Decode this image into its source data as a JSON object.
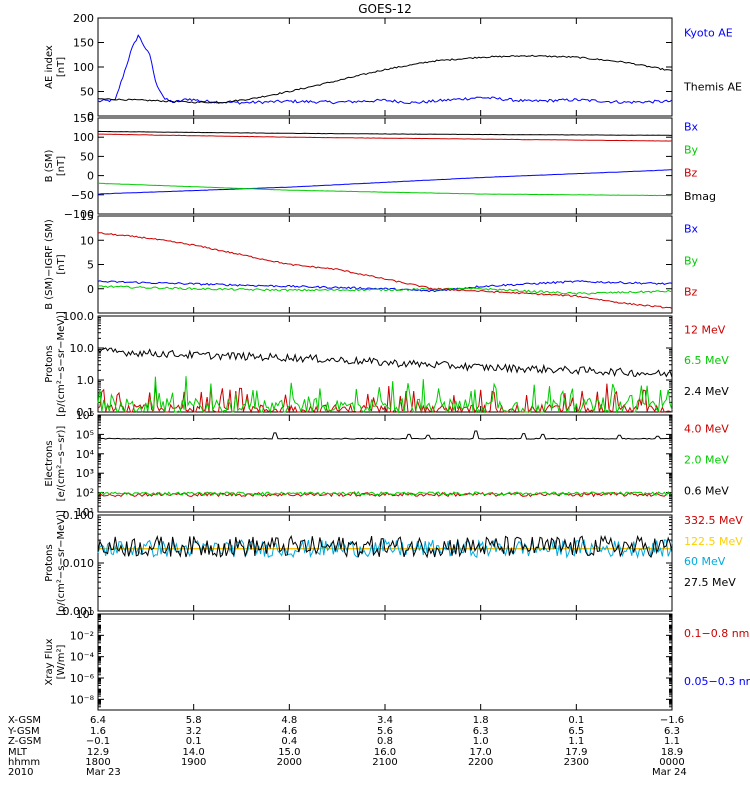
{
  "title": "GOES-12",
  "colors": {
    "black": "#000000",
    "blue": "#0000ff",
    "red": "#cc0000",
    "green": "#00cc00",
    "cyan": "#00aadd",
    "yellow": "#ffd000"
  },
  "chart_data": [
    {
      "id": "ae",
      "type": "line",
      "ylabel": "AE index",
      "yunit": "[nT]",
      "yscale": "linear",
      "ylim": [
        0,
        200
      ],
      "yticks": [
        "0",
        "50",
        "100",
        "150",
        "200"
      ],
      "ytick_values": [
        0,
        50,
        100,
        150,
        200
      ],
      "x_hours": [
        0,
        6
      ],
      "legend_placement": "right",
      "series": [
        {
          "name": "Kyoto AE",
          "color": "#0000ff",
          "legend_color": "#0000ff",
          "legend_pos": 0.15,
          "x": [
            0.0,
            0.18,
            0.35,
            0.42,
            0.55,
            0.6,
            0.7,
            0.8,
            0.95,
            1.1,
            1.5,
            2.0,
            2.5,
            3.0,
            3.3,
            3.5,
            4.0,
            4.5,
            5.0,
            5.5,
            6.0
          ],
          "y": [
            30,
            32,
            135,
            165,
            120,
            70,
            34,
            28,
            35,
            30,
            27,
            30,
            28,
            32,
            27,
            30,
            38,
            30,
            33,
            28,
            30
          ],
          "noise": 3
        },
        {
          "name": "Themis AE",
          "color": "#000000",
          "legend_color": "#000000",
          "legend_pos": 0.7,
          "x": [
            0.0,
            0.5,
            1.0,
            1.3,
            1.6,
            2.0,
            2.5,
            3.0,
            3.3,
            3.5,
            4.0,
            4.5,
            5.0,
            5.5,
            6.0
          ],
          "y": [
            35,
            32,
            28,
            28,
            35,
            50,
            72,
            95,
            105,
            112,
            120,
            123,
            120,
            110,
            92
          ],
          "noise": 1.5
        }
      ]
    },
    {
      "id": "bsm",
      "type": "line",
      "ylabel": "B (SM)",
      "yunit": "[nT]",
      "yscale": "linear",
      "ylim": [
        -100,
        150
      ],
      "yticks": [
        "−100",
        "−50",
        "0",
        "50",
        "100",
        "150"
      ],
      "ytick_values": [
        -100,
        -50,
        0,
        50,
        100,
        150
      ],
      "x_hours": [
        0,
        6
      ],
      "legend_placement": "right",
      "series": [
        {
          "name": "Bx",
          "color": "#0000ff",
          "legend_color": "#0000ff",
          "legend_pos": 0.09,
          "x": [
            0,
            2,
            4,
            6
          ],
          "y": [
            -48,
            -30,
            -5,
            15
          ],
          "noise": 0.3
        },
        {
          "name": "By",
          "color": "#00cc00",
          "legend_color": "#00cc00",
          "legend_pos": 0.33,
          "x": [
            0,
            2,
            4,
            6
          ],
          "y": [
            -20,
            -38,
            -48,
            -52
          ],
          "noise": 0.3
        },
        {
          "name": "Bz",
          "color": "#cc0000",
          "legend_color": "#cc0000",
          "legend_pos": 0.57,
          "x": [
            0,
            2,
            4,
            6
          ],
          "y": [
            108,
            100,
            95,
            90
          ],
          "noise": 0.3
        },
        {
          "name": "Bmag",
          "color": "#000000",
          "legend_color": "#000000",
          "legend_pos": 0.81,
          "x": [
            0,
            2,
            4,
            6
          ],
          "y": [
            115,
            110,
            107,
            105
          ],
          "noise": 0.3
        }
      ]
    },
    {
      "id": "bdiff",
      "type": "line",
      "ylabel": "B (SM)−IGRF (SM)",
      "yunit": "[nT]",
      "yscale": "linear",
      "ylim": [
        -5,
        15
      ],
      "yticks": [
        "0",
        "5",
        "10",
        "15"
      ],
      "ytick_values": [
        0,
        5,
        10,
        15
      ],
      "x_hours": [
        0,
        6
      ],
      "legend_placement": "right",
      "series": [
        {
          "name": "Bx",
          "color": "#0000ff",
          "legend_color": "#0000ff",
          "legend_pos": 0.13,
          "x": [
            0,
            1,
            2,
            3,
            3.5,
            4,
            5,
            6
          ],
          "y": [
            1.5,
            1.0,
            0.5,
            0,
            -0.5,
            0.5,
            1.5,
            1.0
          ],
          "noise": 0.2
        },
        {
          "name": "By",
          "color": "#00cc00",
          "legend_color": "#00cc00",
          "legend_pos": 0.46,
          "x": [
            0,
            1,
            2,
            3,
            4,
            5,
            6
          ],
          "y": [
            0.5,
            0.0,
            -0.3,
            -0.2,
            0.0,
            -1.0,
            -0.5
          ],
          "noise": 0.2
        },
        {
          "name": "Bz",
          "color": "#cc0000",
          "legend_color": "#cc0000",
          "legend_pos": 0.78,
          "x": [
            0,
            0.5,
            1,
            1.5,
            2,
            2.5,
            3,
            3.5,
            4,
            4.5,
            5,
            5.5,
            6
          ],
          "y": [
            11.5,
            10.5,
            9,
            7,
            5,
            4,
            2,
            0,
            -0.5,
            -1.0,
            -1.5,
            -3,
            -4
          ],
          "noise": 0.15
        }
      ]
    },
    {
      "id": "protons_low",
      "type": "line",
      "ylabel": "Protons",
      "yunit": "[p/(cm²−s−sr−MeV)]",
      "yscale": "log",
      "ylim": [
        0.1,
        100
      ],
      "yticks": [
        "0.1",
        "1.0",
        "10.0",
        "100.0"
      ],
      "ytick_values": [
        0.1,
        1,
        10,
        100
      ],
      "x_hours": [
        0,
        6
      ],
      "legend_placement": "right",
      "series": [
        {
          "name": "12 MeV",
          "color": "#cc0000",
          "legend_color": "#cc0000",
          "legend_pos": 0.14,
          "x": [
            0,
            6
          ],
          "y": [
            0.12,
            0.12
          ],
          "noise": 0.15,
          "spiky": true
        },
        {
          "name": "6.5 MeV",
          "color": "#00cc00",
          "legend_color": "#00cc00",
          "legend_pos": 0.46,
          "x": [
            0,
            6
          ],
          "y": [
            0.15,
            0.15
          ],
          "noise": 0.25,
          "spiky": true
        },
        {
          "name": "2.4 MeV",
          "color": "#000000",
          "legend_color": "#000000",
          "legend_pos": 0.78,
          "x": [
            0,
            1,
            2,
            3,
            4,
            5,
            6
          ],
          "y": [
            8,
            6,
            5,
            3.5,
            2.5,
            2.0,
            1.5
          ],
          "noise": 0.12
        }
      ]
    },
    {
      "id": "electrons",
      "type": "line",
      "ylabel": "Electrons",
      "yunit": "[e/(cm²−s−sr)]",
      "yscale": "log",
      "ylim": [
        10,
        1000000
      ],
      "yticks": [
        "10¹",
        "10²",
        "10³",
        "10⁴",
        "10⁵",
        "10⁶"
      ],
      "ytick_values": [
        10,
        100,
        1000,
        10000,
        100000,
        1000000
      ],
      "x_hours": [
        0,
        6
      ],
      "legend_placement": "right",
      "series": [
        {
          "name": "4.0 MeV",
          "color": "#cc0000",
          "legend_color": "#cc0000",
          "legend_pos": 0.14,
          "x": [
            0,
            6
          ],
          "y": [
            80,
            80
          ],
          "noise": 0.1
        },
        {
          "name": "2.0 MeV",
          "color": "#00cc00",
          "legend_color": "#00cc00",
          "legend_pos": 0.46,
          "x": [
            0,
            6
          ],
          "y": [
            90,
            90
          ],
          "noise": 0.08
        },
        {
          "name": "0.6 MeV",
          "color": "#000000",
          "legend_color": "#000000",
          "legend_pos": 0.78,
          "x": [
            0,
            6
          ],
          "y": [
            60000,
            60000
          ],
          "noise": 0.02,
          "bumps": [
            [
              1.85,
              120000
            ],
            [
              3.25,
              100000
            ],
            [
              3.45,
              90000
            ],
            [
              3.95,
              150000
            ],
            [
              4.45,
              110000
            ],
            [
              4.65,
              100000
            ],
            [
              5.45,
              90000
            ],
            [
              5.85,
              80000
            ]
          ]
        }
      ]
    },
    {
      "id": "protons_high",
      "type": "line",
      "ylabel": "Protons",
      "yunit": "[p/(cm²−s−sr−MeV)]",
      "yscale": "log",
      "ylim": [
        0.001,
        0.1
      ],
      "yticks": [
        "0.001",
        "0.010",
        "0.100"
      ],
      "ytick_values": [
        0.001,
        0.01,
        0.1
      ],
      "x_hours": [
        0,
        6
      ],
      "legend_placement": "right",
      "series": [
        {
          "name": "332.5 MeV",
          "color": "#cc0000",
          "legend_color": "#cc0000",
          "legend_pos": 0.05,
          "x": [
            0,
            6
          ],
          "y": [
            0.02,
            0.02
          ],
          "noise": 0
        },
        {
          "name": "122.5 MeV",
          "color": "#ffd000",
          "legend_color": "#ffd000",
          "legend_pos": 0.27,
          "x": [
            0,
            6
          ],
          "y": [
            0.02,
            0.02
          ],
          "noise": 0
        },
        {
          "name": "60 MeV",
          "color": "#00aadd",
          "legend_color": "#00aadd",
          "legend_pos": 0.48,
          "x": [
            0,
            6
          ],
          "y": [
            0.02,
            0.02
          ],
          "noise": 0.18
        },
        {
          "name": "27.5 MeV",
          "color": "#000000",
          "legend_color": "#000000",
          "legend_pos": 0.7,
          "x": [
            0,
            6
          ],
          "y": [
            0.022,
            0.022
          ],
          "noise": 0.22
        }
      ]
    },
    {
      "id": "xray",
      "type": "line",
      "ylabel": "Xray Flux",
      "yunit": "[W/m²]",
      "yscale": "log",
      "ylim": [
        1e-09,
        1
      ],
      "yticks": [
        "10⁻⁸",
        "10⁻⁶",
        "10⁻⁴",
        "10⁻²",
        "10⁰"
      ],
      "ytick_values": [
        1e-08,
        1e-06,
        0.0001,
        0.01,
        1
      ],
      "x_hours": [
        0,
        6
      ],
      "legend_placement": "right",
      "series": [
        {
          "name": "0.1−0.8 nm",
          "color": "#cc0000",
          "legend_color": "#cc0000",
          "legend_pos": 0.2,
          "x": [],
          "y": []
        },
        {
          "name": "0.05−0.3 nm",
          "color": "#0000ff",
          "legend_color": "#0000ff",
          "legend_pos": 0.7,
          "x": [],
          "y": []
        }
      ]
    }
  ],
  "x_axis": {
    "rows": [
      {
        "label": "X-GSM",
        "values": [
          "6.4",
          "5.8",
          "4.8",
          "3.4",
          "1.8",
          "0.1",
          "−1.6"
        ]
      },
      {
        "label": "Y-GSM",
        "values": [
          "1.6",
          "3.2",
          "4.6",
          "5.6",
          "6.3",
          "6.5",
          "6.3"
        ]
      },
      {
        "label": "Z-GSM",
        "values": [
          "−0.1",
          "0.1",
          "0.4",
          "0.8",
          "1.0",
          "1.1",
          "1.1"
        ]
      },
      {
        "label": "MLT",
        "values": [
          "12.9",
          "14.0",
          "15.0",
          "16.0",
          "17.0",
          "17.9",
          "18.9"
        ]
      },
      {
        "label": "hhmm",
        "values": [
          "1800",
          "1900",
          "2000",
          "2100",
          "2200",
          "2300",
          "0000"
        ]
      },
      {
        "label": "2010",
        "values": [
          "Mar 23",
          "",
          "",
          "",
          "",
          "",
          "Mar 24"
        ]
      }
    ],
    "tick_hours": [
      0,
      1,
      2,
      3,
      4,
      5,
      6
    ]
  }
}
